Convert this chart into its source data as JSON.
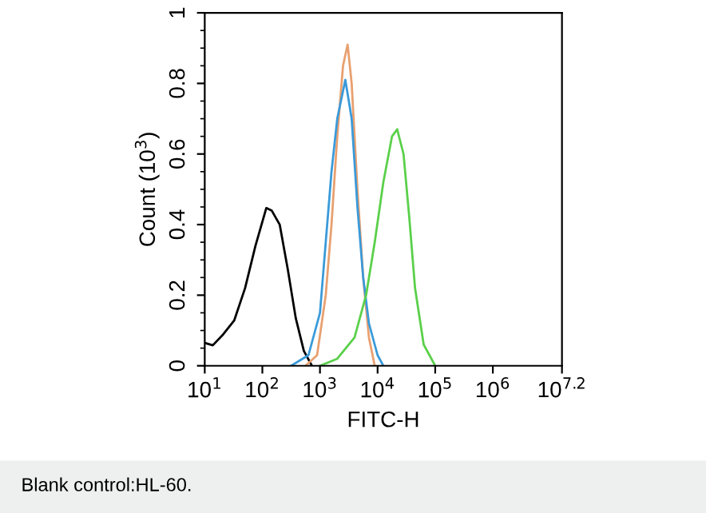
{
  "chart_data": {
    "type": "line",
    "xlabel": "FITC-H",
    "ylabel": "Count (10$^{3}$)",
    "log": "x",
    "grid": false,
    "xlim": [
      10,
      15848932
    ],
    "ylim": [
      0,
      1
    ],
    "xticks": [
      {
        "value": 10,
        "label": "10$^{1}$"
      },
      {
        "value": 100,
        "label": "10$^{2}$"
      },
      {
        "value": 1000,
        "label": "10$^{3}$"
      },
      {
        "value": 10000,
        "label": "10$^{4}$"
      },
      {
        "value": 100000,
        "label": "10$^{5}$"
      },
      {
        "value": 1000000,
        "label": "10$^{6}$"
      },
      {
        "value": 15848932,
        "label": "10$^{7.2}$"
      }
    ],
    "yticks": [
      0,
      0.2,
      0.4,
      0.6,
      0.8,
      1
    ],
    "annotations": [
      "Blank control:HL-60."
    ],
    "series": [
      {
        "color": "#000000",
        "x": [
          10,
          13.8,
          20.9,
          32.4,
          50.1,
          75.9,
          117,
          145,
          200,
          275,
          380,
          525,
          724
        ],
        "values": [
          0.065,
          0.058,
          0.089,
          0.128,
          0.22,
          0.34,
          0.447,
          0.44,
          0.4,
          0.275,
          0.135,
          0.042,
          0
        ]
      },
      {
        "color": "#e8a070",
        "x": [
          562,
          891,
          1259,
          1585,
          1995,
          2512,
          3020,
          3548,
          4467,
          5623,
          7079,
          8913
        ],
        "values": [
          0,
          0.03,
          0.2,
          0.4,
          0.65,
          0.85,
          0.91,
          0.8,
          0.5,
          0.25,
          0.08,
          0
        ]
      },
      {
        "color": "#3a9ad9",
        "x": [
          316,
          631,
          1000,
          1259,
          1585,
          1995,
          2754,
          3548,
          4467,
          5623,
          7079,
          10000,
          12589
        ],
        "values": [
          0,
          0.03,
          0.15,
          0.35,
          0.55,
          0.7,
          0.81,
          0.7,
          0.45,
          0.25,
          0.12,
          0.03,
          0
        ]
      },
      {
        "color": "#5ad04a",
        "x": [
          1000,
          1995,
          3981,
          6310,
          8913,
          12589,
          17783,
          21878,
          28184,
          35481,
          44668,
          63096,
          100000
        ],
        "values": [
          0,
          0.02,
          0.08,
          0.2,
          0.35,
          0.52,
          0.65,
          0.67,
          0.6,
          0.42,
          0.22,
          0.06,
          0
        ]
      }
    ]
  }
}
